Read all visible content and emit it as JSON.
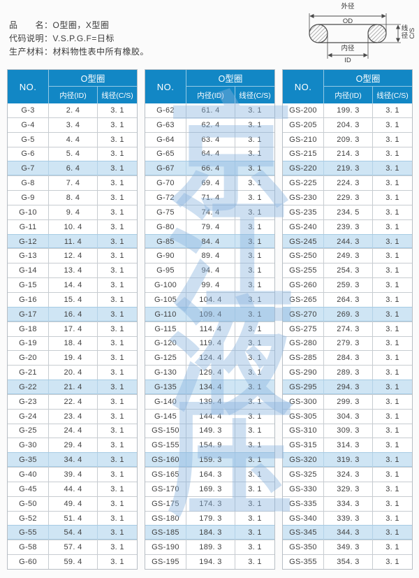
{
  "doc": {
    "info_lines": [
      "品　　名：O型圈，X型圈",
      "代码说明：V.S.P.G.F=日标",
      "生产材料：材料物性表中所有橡胶。"
    ],
    "diagram": {
      "od_label": "外径",
      "od_code": "OD",
      "id_label": "内径",
      "id_code": "ID",
      "cs_label": "线径",
      "cs_code": "C/S"
    },
    "colors": {
      "header_blue": "#1287c5",
      "row_highlight": "#cfe5f4",
      "watermark_blue": "#88b2dd"
    }
  },
  "watermark": [
    "京",
    "江",
    "液",
    "压"
  ],
  "table_header": {
    "no": "NO.",
    "group": "O型圈",
    "id": "内径(ID)",
    "cs": "线径(C/S)"
  },
  "tables": [
    {
      "rows": [
        {
          "no": "G-3",
          "id": "2. 4",
          "cs": "3. 1",
          "hl": false
        },
        {
          "no": "G-4",
          "id": "3. 4",
          "cs": "3. 1",
          "hl": false
        },
        {
          "no": "G-5",
          "id": "4. 4",
          "cs": "3. 1",
          "hl": false
        },
        {
          "no": "G-6",
          "id": "5. 4",
          "cs": "3. 1",
          "hl": false
        },
        {
          "no": "G-7",
          "id": "6. 4",
          "cs": "3. 1",
          "hl": true
        },
        {
          "no": "G-8",
          "id": "7. 4",
          "cs": "3. 1",
          "hl": false
        },
        {
          "no": "G-9",
          "id": "8. 4",
          "cs": "3. 1",
          "hl": false
        },
        {
          "no": "G-10",
          "id": "9. 4",
          "cs": "3. 1",
          "hl": false
        },
        {
          "no": "G-11",
          "id": "10. 4",
          "cs": "3. 1",
          "hl": false
        },
        {
          "no": "G-12",
          "id": "11. 4",
          "cs": "3. 1",
          "hl": true
        },
        {
          "no": "G-13",
          "id": "12. 4",
          "cs": "3. 1",
          "hl": false
        },
        {
          "no": "G-14",
          "id": "13. 4",
          "cs": "3. 1",
          "hl": false
        },
        {
          "no": "G-15",
          "id": "14. 4",
          "cs": "3. 1",
          "hl": false
        },
        {
          "no": "G-16",
          "id": "15. 4",
          "cs": "3. 1",
          "hl": false
        },
        {
          "no": "G-17",
          "id": "16. 4",
          "cs": "3. 1",
          "hl": true
        },
        {
          "no": "G-18",
          "id": "17. 4",
          "cs": "3. 1",
          "hl": false
        },
        {
          "no": "G-19",
          "id": "18. 4",
          "cs": "3. 1",
          "hl": false
        },
        {
          "no": "G-20",
          "id": "19. 4",
          "cs": "3. 1",
          "hl": false
        },
        {
          "no": "G-21",
          "id": "20. 4",
          "cs": "3. 1",
          "hl": false
        },
        {
          "no": "G-22",
          "id": "21. 4",
          "cs": "3. 1",
          "hl": true
        },
        {
          "no": "G-23",
          "id": "22. 4",
          "cs": "3. 1",
          "hl": false
        },
        {
          "no": "G-24",
          "id": "23. 4",
          "cs": "3. 1",
          "hl": false
        },
        {
          "no": "G-25",
          "id": "24. 4",
          "cs": "3. 1",
          "hl": false
        },
        {
          "no": "G-30",
          "id": "29. 4",
          "cs": "3. 1",
          "hl": false
        },
        {
          "no": "G-35",
          "id": "34. 4",
          "cs": "3. 1",
          "hl": true
        },
        {
          "no": "G-40",
          "id": "39. 4",
          "cs": "3. 1",
          "hl": false
        },
        {
          "no": "G-45",
          "id": "44. 4",
          "cs": "3. 1",
          "hl": false
        },
        {
          "no": "G-50",
          "id": "49. 4",
          "cs": "3. 1",
          "hl": false
        },
        {
          "no": "G-52",
          "id": "51. 4",
          "cs": "3. 1",
          "hl": false
        },
        {
          "no": "G-55",
          "id": "54. 4",
          "cs": "3. 1",
          "hl": true
        },
        {
          "no": "G-58",
          "id": "57. 4",
          "cs": "3. 1",
          "hl": false
        },
        {
          "no": "G-60",
          "id": "59. 4",
          "cs": "3. 1",
          "hl": false
        }
      ]
    },
    {
      "rows": [
        {
          "no": "G-62",
          "id": "61. 4",
          "cs": "3. 1",
          "hl": false
        },
        {
          "no": "G-63",
          "id": "62. 4",
          "cs": "3. 1",
          "hl": false
        },
        {
          "no": "G-64",
          "id": "63. 4",
          "cs": "3. 1",
          "hl": false
        },
        {
          "no": "G-65",
          "id": "64. 4",
          "cs": "3. 1",
          "hl": false
        },
        {
          "no": "G-67",
          "id": "66. 4",
          "cs": "3. 1",
          "hl": true
        },
        {
          "no": "G-70",
          "id": "69. 4",
          "cs": "3. 1",
          "hl": false
        },
        {
          "no": "G-72",
          "id": "71. 4",
          "cs": "3. 1",
          "hl": false
        },
        {
          "no": "G-75",
          "id": "74. 4",
          "cs": "3. 1",
          "hl": false
        },
        {
          "no": "G-80",
          "id": "79. 4",
          "cs": "3. 1",
          "hl": false
        },
        {
          "no": "G-85",
          "id": "84. 4",
          "cs": "3. 1",
          "hl": true
        },
        {
          "no": "G-90",
          "id": "89. 4",
          "cs": "3. 1",
          "hl": false
        },
        {
          "no": "G-95",
          "id": "94. 4",
          "cs": "3. 1",
          "hl": false
        },
        {
          "no": "G-100",
          "id": "99. 4",
          "cs": "3. 1",
          "hl": false
        },
        {
          "no": "G-105",
          "id": "104. 4",
          "cs": "3. 1",
          "hl": false
        },
        {
          "no": "G-110",
          "id": "109. 4",
          "cs": "3. 1",
          "hl": true
        },
        {
          "no": "G-115",
          "id": "114. 4",
          "cs": "3. 1",
          "hl": false
        },
        {
          "no": "G-120",
          "id": "119. 4",
          "cs": "3. 1",
          "hl": false
        },
        {
          "no": "G-125",
          "id": "124. 4",
          "cs": "3. 1",
          "hl": false
        },
        {
          "no": "G-130",
          "id": "129. 4",
          "cs": "3. 1",
          "hl": false
        },
        {
          "no": "G-135",
          "id": "134. 4",
          "cs": "3. 1",
          "hl": true
        },
        {
          "no": "G-140",
          "id": "139. 4",
          "cs": "3. 1",
          "hl": false
        },
        {
          "no": "G-145",
          "id": "144. 4",
          "cs": "3. 1",
          "hl": false
        },
        {
          "no": "GS-150",
          "id": "149. 3",
          "cs": "3. 1",
          "hl": false
        },
        {
          "no": "GS-155",
          "id": "154. 9",
          "cs": "3. 1",
          "hl": false
        },
        {
          "no": "GS-160",
          "id": "159. 3",
          "cs": "3. 1",
          "hl": true
        },
        {
          "no": "GS-165",
          "id": "164. 3",
          "cs": "3. 1",
          "hl": false
        },
        {
          "no": "GS-170",
          "id": "169. 3",
          "cs": "3. 1",
          "hl": false
        },
        {
          "no": "GS-175",
          "id": "174. 3",
          "cs": "3. 1",
          "hl": false
        },
        {
          "no": "GS-180",
          "id": "179. 3",
          "cs": "3. 1",
          "hl": false
        },
        {
          "no": "GS-185",
          "id": "184. 3",
          "cs": "3. 1",
          "hl": true
        },
        {
          "no": "GS-190",
          "id": "189. 3",
          "cs": "3. 1",
          "hl": false
        },
        {
          "no": "GS-195",
          "id": "194. 3",
          "cs": "3. 1",
          "hl": false
        }
      ]
    },
    {
      "rows": [
        {
          "no": "GS-200",
          "id": "199. 3",
          "cs": "3. 1",
          "hl": false
        },
        {
          "no": "GS-205",
          "id": "204. 3",
          "cs": "3. 1",
          "hl": false
        },
        {
          "no": "GS-210",
          "id": "209. 3",
          "cs": "3. 1",
          "hl": false
        },
        {
          "no": "GS-215",
          "id": "214. 3",
          "cs": "3. 1",
          "hl": false
        },
        {
          "no": "GS-220",
          "id": "219. 3",
          "cs": "3. 1",
          "hl": true
        },
        {
          "no": "GS-225",
          "id": "224. 3",
          "cs": "3. 1",
          "hl": false
        },
        {
          "no": "GS-230",
          "id": "229. 3",
          "cs": "3. 1",
          "hl": false
        },
        {
          "no": "GS-235",
          "id": "234. 5",
          "cs": "3. 1",
          "hl": false
        },
        {
          "no": "GS-240",
          "id": "239. 3",
          "cs": "3. 1",
          "hl": false
        },
        {
          "no": "GS-245",
          "id": "244. 3",
          "cs": "3. 1",
          "hl": true
        },
        {
          "no": "GS-250",
          "id": "249. 3",
          "cs": "3. 1",
          "hl": false
        },
        {
          "no": "GS-255",
          "id": "254. 3",
          "cs": "3. 1",
          "hl": false
        },
        {
          "no": "GS-260",
          "id": "259. 3",
          "cs": "3. 1",
          "hl": false
        },
        {
          "no": "GS-265",
          "id": "264. 3",
          "cs": "3. 1",
          "hl": false
        },
        {
          "no": "GS-270",
          "id": "269. 3",
          "cs": "3. 1",
          "hl": true
        },
        {
          "no": "GS-275",
          "id": "274. 3",
          "cs": "3. 1",
          "hl": false
        },
        {
          "no": "GS-280",
          "id": "279. 3",
          "cs": "3. 1",
          "hl": false
        },
        {
          "no": "GS-285",
          "id": "284. 3",
          "cs": "3. 1",
          "hl": false
        },
        {
          "no": "GS-290",
          "id": "289. 3",
          "cs": "3. 1",
          "hl": false
        },
        {
          "no": "GS-295",
          "id": "294. 3",
          "cs": "3. 1",
          "hl": true
        },
        {
          "no": "GS-300",
          "id": "299. 3",
          "cs": "3. 1",
          "hl": false
        },
        {
          "no": "GS-305",
          "id": "304. 3",
          "cs": "3. 1",
          "hl": false
        },
        {
          "no": "GS-310",
          "id": "309. 3",
          "cs": "3. 1",
          "hl": false
        },
        {
          "no": "GS-315",
          "id": "314. 3",
          "cs": "3. 1",
          "hl": false
        },
        {
          "no": "GS-320",
          "id": "319. 3",
          "cs": "3. 1",
          "hl": true
        },
        {
          "no": "GS-325",
          "id": "324. 3",
          "cs": "3. 1",
          "hl": false
        },
        {
          "no": "GS-330",
          "id": "329. 3",
          "cs": "3. 1",
          "hl": false
        },
        {
          "no": "GS-335",
          "id": "334. 3",
          "cs": "3. 1",
          "hl": false
        },
        {
          "no": "GS-340",
          "id": "339. 3",
          "cs": "3. 1",
          "hl": false
        },
        {
          "no": "GS-345",
          "id": "344. 3",
          "cs": "3. 1",
          "hl": true
        },
        {
          "no": "GS-350",
          "id": "349. 3",
          "cs": "3. 1",
          "hl": false
        },
        {
          "no": "GS-355",
          "id": "354. 3",
          "cs": "3. 1",
          "hl": false
        }
      ]
    }
  ]
}
